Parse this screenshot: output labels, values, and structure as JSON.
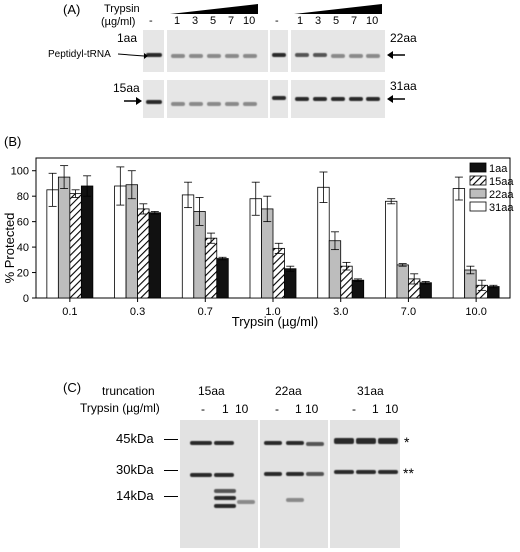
{
  "panelA": {
    "label": "(A)",
    "trypsin_label": "Trypsin",
    "units_label": "(µg/ml)",
    "dash": "-",
    "concentrations": [
      "1",
      "3",
      "5",
      "7",
      "10"
    ],
    "label_1aa": "1aa",
    "label_15aa": "15aa",
    "label_22aa": "22aa",
    "label_31aa": "31aa",
    "peptidyl_label": "Peptidyl-tRNA"
  },
  "panelB": {
    "label": "(B)"
  },
  "chart_data": {
    "type": "bar",
    "categories": [
      "0.1",
      "0.3",
      "0.7",
      "1.0",
      "3.0",
      "7.0",
      "10.0"
    ],
    "series": [
      {
        "name": "31aa",
        "pattern": "white",
        "values": [
          85,
          88,
          81,
          78,
          87,
          76,
          86
        ],
        "errors": [
          13,
          15,
          10,
          13,
          12,
          2,
          9
        ]
      },
      {
        "name": "22aa",
        "pattern": "gray",
        "values": [
          95,
          89,
          68,
          70,
          45,
          26,
          22
        ],
        "errors": [
          9,
          11,
          11,
          10,
          7,
          1,
          3
        ]
      },
      {
        "name": "15aa",
        "pattern": "hatched",
        "values": [
          82,
          70,
          47,
          39,
          25,
          15,
          10
        ],
        "errors": [
          3,
          4,
          4,
          4,
          3,
          4,
          4
        ]
      },
      {
        "name": "1aa",
        "pattern": "black",
        "values": [
          88,
          67,
          31,
          23,
          14,
          12,
          9
        ],
        "errors": [
          8,
          1,
          1,
          2,
          1,
          1,
          1
        ]
      }
    ],
    "legend_order": [
      "1aa",
      "15aa",
      "22aa",
      "31aa"
    ],
    "xlabel": "Trypsin (µg/ml)",
    "ylabel": "% Protected",
    "ylim": [
      0,
      110
    ],
    "yticks": [
      "0",
      "20",
      "40",
      "60",
      "80",
      "100"
    ],
    "legend_position": "top-right",
    "grid": false
  },
  "panelC": {
    "label": "(C)",
    "truncation_label": "truncation",
    "trypsin_label": "Trypsin (µg/ml)",
    "groups": [
      "15aa",
      "22aa",
      "31aa"
    ],
    "lane_dash": "-",
    "lane_1": "1",
    "lane_10": "10",
    "mw_45": "45kDa",
    "mw_30": "30kDa",
    "mw_14": "14kDa",
    "star1": "*",
    "star2": "**"
  }
}
